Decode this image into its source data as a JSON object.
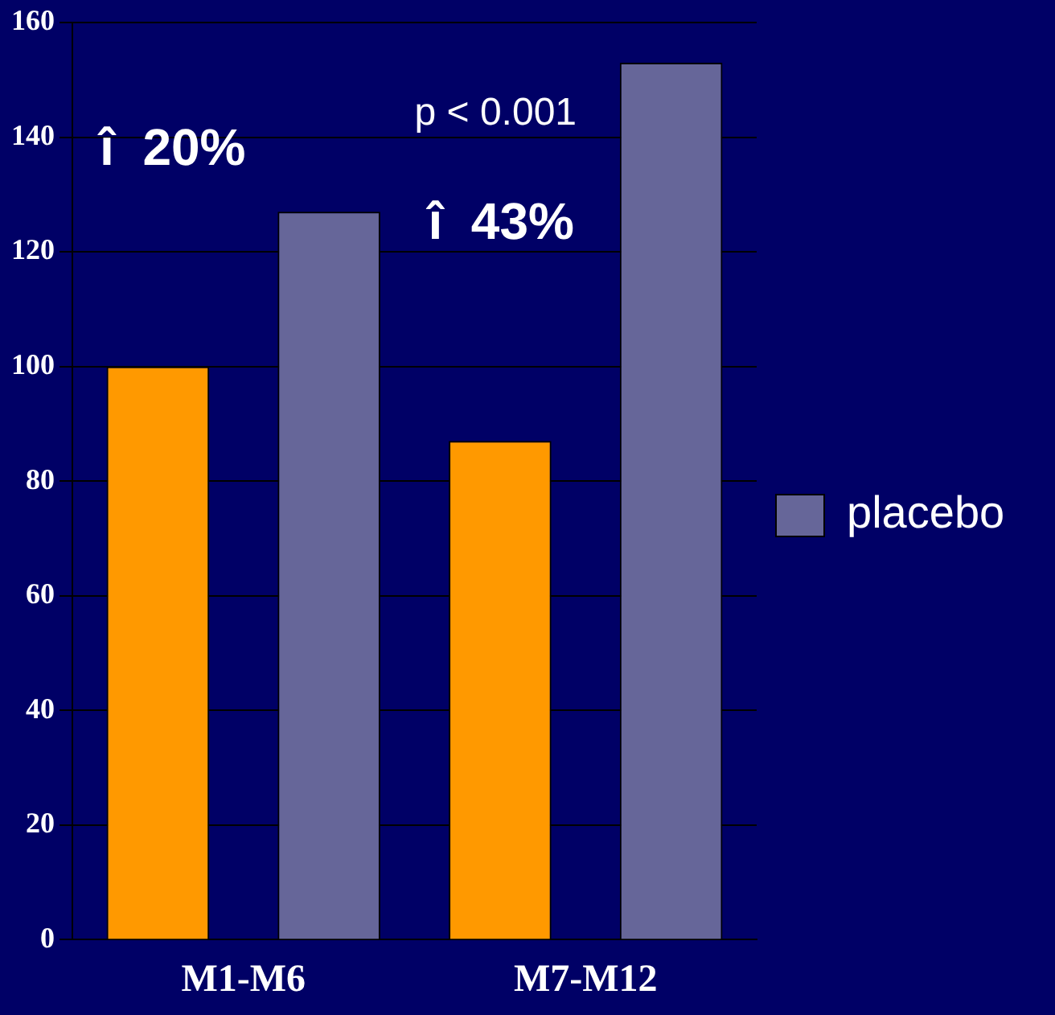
{
  "chart_data": {
    "type": "bar",
    "categories": [
      "M1-M6",
      "M7-M12"
    ],
    "series": [
      {
        "color": "#ff9900",
        "values": [
          100,
          87
        ]
      },
      {
        "name": "placebo",
        "color": "#666699",
        "values": [
          127,
          153
        ]
      }
    ],
    "ylim": [
      0,
      160
    ],
    "yticks": [
      0,
      20,
      40,
      60,
      80,
      100,
      120,
      140,
      160
    ],
    "grid": "y",
    "legend": "right",
    "annotations": [
      "p < 0.001",
      "î  20%",
      "î  43%"
    ]
  }
}
